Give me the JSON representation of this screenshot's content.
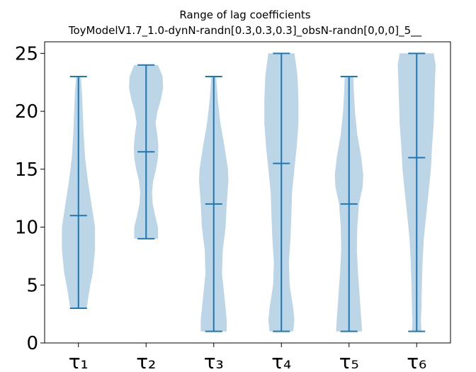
{
  "chart_data": {
    "type": "violin",
    "title": "Range of lag coefficients",
    "subtitle": "ToyModelV1.7_1.0-dynN-randn[0.3,0.3,0.3]_obsN-randn[0,0,0]_5__",
    "categories": [
      "τ₁",
      "τ₂",
      "τ₃",
      "τ₄",
      "τ₅",
      "τ₆"
    ],
    "ylim": [
      0,
      26
    ],
    "yticks": [
      0,
      5,
      10,
      15,
      20,
      25
    ],
    "ytick_labels": [
      "0",
      "5",
      "10",
      "15",
      "20",
      "25"
    ],
    "grid": false,
    "colors": {
      "body": "#bcd5e7",
      "line": "#1f77b4"
    },
    "series": [
      {
        "category": "τ₁",
        "min": 3,
        "median": 11,
        "max": 23,
        "density": [
          [
            3,
            0.35
          ],
          [
            4,
            0.42
          ],
          [
            5,
            0.5
          ],
          [
            6,
            0.6
          ],
          [
            8,
            0.7
          ],
          [
            10,
            0.7
          ],
          [
            12,
            0.55
          ],
          [
            14,
            0.4
          ],
          [
            16,
            0.28
          ],
          [
            18,
            0.22
          ],
          [
            20,
            0.18
          ],
          [
            21.5,
            0.15
          ],
          [
            23,
            0.1
          ]
        ]
      },
      {
        "category": "τ₂",
        "min": 9,
        "median": 16.5,
        "max": 24,
        "density": [
          [
            9,
            0.5
          ],
          [
            10,
            0.5
          ],
          [
            11,
            0.38
          ],
          [
            12,
            0.28
          ],
          [
            13,
            0.25
          ],
          [
            14,
            0.3
          ],
          [
            15,
            0.42
          ],
          [
            16,
            0.5
          ],
          [
            17,
            0.52
          ],
          [
            18,
            0.47
          ],
          [
            19,
            0.4
          ],
          [
            20,
            0.48
          ],
          [
            21,
            0.62
          ],
          [
            22,
            0.72
          ],
          [
            23,
            0.7
          ],
          [
            24,
            0.5
          ]
        ]
      },
      {
        "category": "τ₃",
        "min": 1,
        "median": 12,
        "max": 23,
        "density": [
          [
            1,
            0.55
          ],
          [
            2,
            0.55
          ],
          [
            4,
            0.45
          ],
          [
            6,
            0.35
          ],
          [
            8,
            0.38
          ],
          [
            10,
            0.5
          ],
          [
            12,
            0.55
          ],
          [
            14,
            0.62
          ],
          [
            15,
            0.6
          ],
          [
            17,
            0.45
          ],
          [
            19,
            0.28
          ],
          [
            21,
            0.17
          ],
          [
            23,
            0.1
          ]
        ]
      },
      {
        "category": "τ₄",
        "min": 1,
        "median": 15.5,
        "max": 25,
        "density": [
          [
            1,
            0.5
          ],
          [
            2,
            0.55
          ],
          [
            3,
            0.5
          ],
          [
            5,
            0.35
          ],
          [
            7,
            0.32
          ],
          [
            9,
            0.38
          ],
          [
            11,
            0.42
          ],
          [
            13,
            0.45
          ],
          [
            15,
            0.55
          ],
          [
            17,
            0.65
          ],
          [
            19,
            0.72
          ],
          [
            21,
            0.72
          ],
          [
            23,
            0.68
          ],
          [
            24,
            0.62
          ],
          [
            25,
            0.55
          ]
        ]
      },
      {
        "category": "τ₅",
        "min": 1,
        "median": 12,
        "max": 23,
        "density": [
          [
            1,
            0.55
          ],
          [
            2,
            0.52
          ],
          [
            4,
            0.45
          ],
          [
            6,
            0.38
          ],
          [
            8,
            0.33
          ],
          [
            10,
            0.35
          ],
          [
            12,
            0.42
          ],
          [
            13.5,
            0.58
          ],
          [
            14.5,
            0.6
          ],
          [
            16,
            0.52
          ],
          [
            18,
            0.35
          ],
          [
            20,
            0.25
          ],
          [
            22,
            0.2
          ],
          [
            23,
            0.18
          ]
        ]
      },
      {
        "category": "τ₆",
        "min": 1,
        "median": 16,
        "max": 25,
        "density": [
          [
            1,
            0.2
          ],
          [
            2,
            0.18
          ],
          [
            3,
            0.2
          ],
          [
            5,
            0.22
          ],
          [
            7,
            0.25
          ],
          [
            9,
            0.3
          ],
          [
            11,
            0.4
          ],
          [
            13,
            0.5
          ],
          [
            15,
            0.6
          ],
          [
            17,
            0.65
          ],
          [
            19,
            0.72
          ],
          [
            21,
            0.75
          ],
          [
            23,
            0.78
          ],
          [
            24,
            0.8
          ],
          [
            25,
            0.72
          ]
        ]
      }
    ]
  }
}
